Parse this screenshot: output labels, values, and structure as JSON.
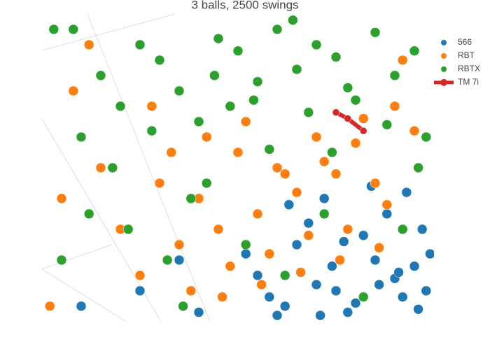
{
  "chart_data": {
    "type": "scatter3d",
    "title": "3 balls, 2500 swings",
    "xlim": [
      0,
      100
    ],
    "ylim": [
      0,
      100
    ],
    "series": [
      {
        "name": "566",
        "color": "#1f77b4",
        "line": false,
        "x": [
          62,
          70,
          78,
          85,
          92,
          97,
          55,
          65,
          75,
          88,
          95,
          60,
          72,
          82,
          90,
          99,
          68,
          80,
          93,
          58,
          74,
          86,
          96,
          63,
          77,
          91,
          52,
          84,
          98,
          71,
          10,
          25,
          35,
          40
        ],
        "y": [
          5,
          12,
          3,
          20,
          8,
          30,
          15,
          25,
          10,
          35,
          18,
          2,
          40,
          28,
          14,
          22,
          32,
          6,
          42,
          8,
          18,
          12,
          4,
          38,
          26,
          16,
          22,
          44,
          10,
          2,
          5,
          10,
          20,
          3
        ]
      },
      {
        "name": "RBT",
        "color": "#ff7f0e",
        "line": false,
        "x": [
          30,
          40,
          50,
          60,
          70,
          80,
          90,
          35,
          45,
          55,
          65,
          75,
          85,
          95,
          25,
          38,
          48,
          58,
          68,
          78,
          88,
          42,
          52,
          62,
          72,
          82,
          20,
          33,
          15,
          5,
          2,
          8,
          28,
          12,
          46,
          56,
          66,
          76,
          86,
          92
        ],
        "y": [
          45,
          40,
          55,
          50,
          60,
          58,
          70,
          25,
          30,
          35,
          42,
          48,
          45,
          62,
          15,
          10,
          18,
          22,
          28,
          30,
          38,
          60,
          65,
          48,
          52,
          66,
          30,
          55,
          50,
          40,
          5,
          75,
          70,
          90,
          8,
          12,
          16,
          20,
          24,
          85
        ]
      },
      {
        "name": "RBTX",
        "color": "#2ca02c",
        "line": false,
        "x": [
          5,
          10,
          15,
          20,
          25,
          30,
          35,
          40,
          45,
          50,
          55,
          60,
          65,
          70,
          75,
          80,
          85,
          90,
          95,
          98,
          8,
          18,
          28,
          38,
          48,
          58,
          68,
          78,
          88,
          96,
          12,
          22,
          32,
          42,
          52,
          62,
          72,
          82,
          92,
          3,
          36,
          44,
          54,
          64,
          74
        ],
        "y": [
          20,
          60,
          80,
          70,
          90,
          85,
          75,
          65,
          92,
          88,
          78,
          95,
          82,
          90,
          86,
          72,
          94,
          80,
          88,
          60,
          95,
          50,
          62,
          40,
          70,
          56,
          68,
          76,
          64,
          50,
          35,
          30,
          20,
          45,
          25,
          15,
          35,
          8,
          30,
          95,
          5,
          80,
          72,
          98,
          55
        ]
      },
      {
        "name": "TM 7i",
        "color": "#d62728",
        "line": true,
        "x": [
          75,
          78,
          82
        ],
        "y": [
          68,
          66,
          62
        ]
      }
    ]
  }
}
